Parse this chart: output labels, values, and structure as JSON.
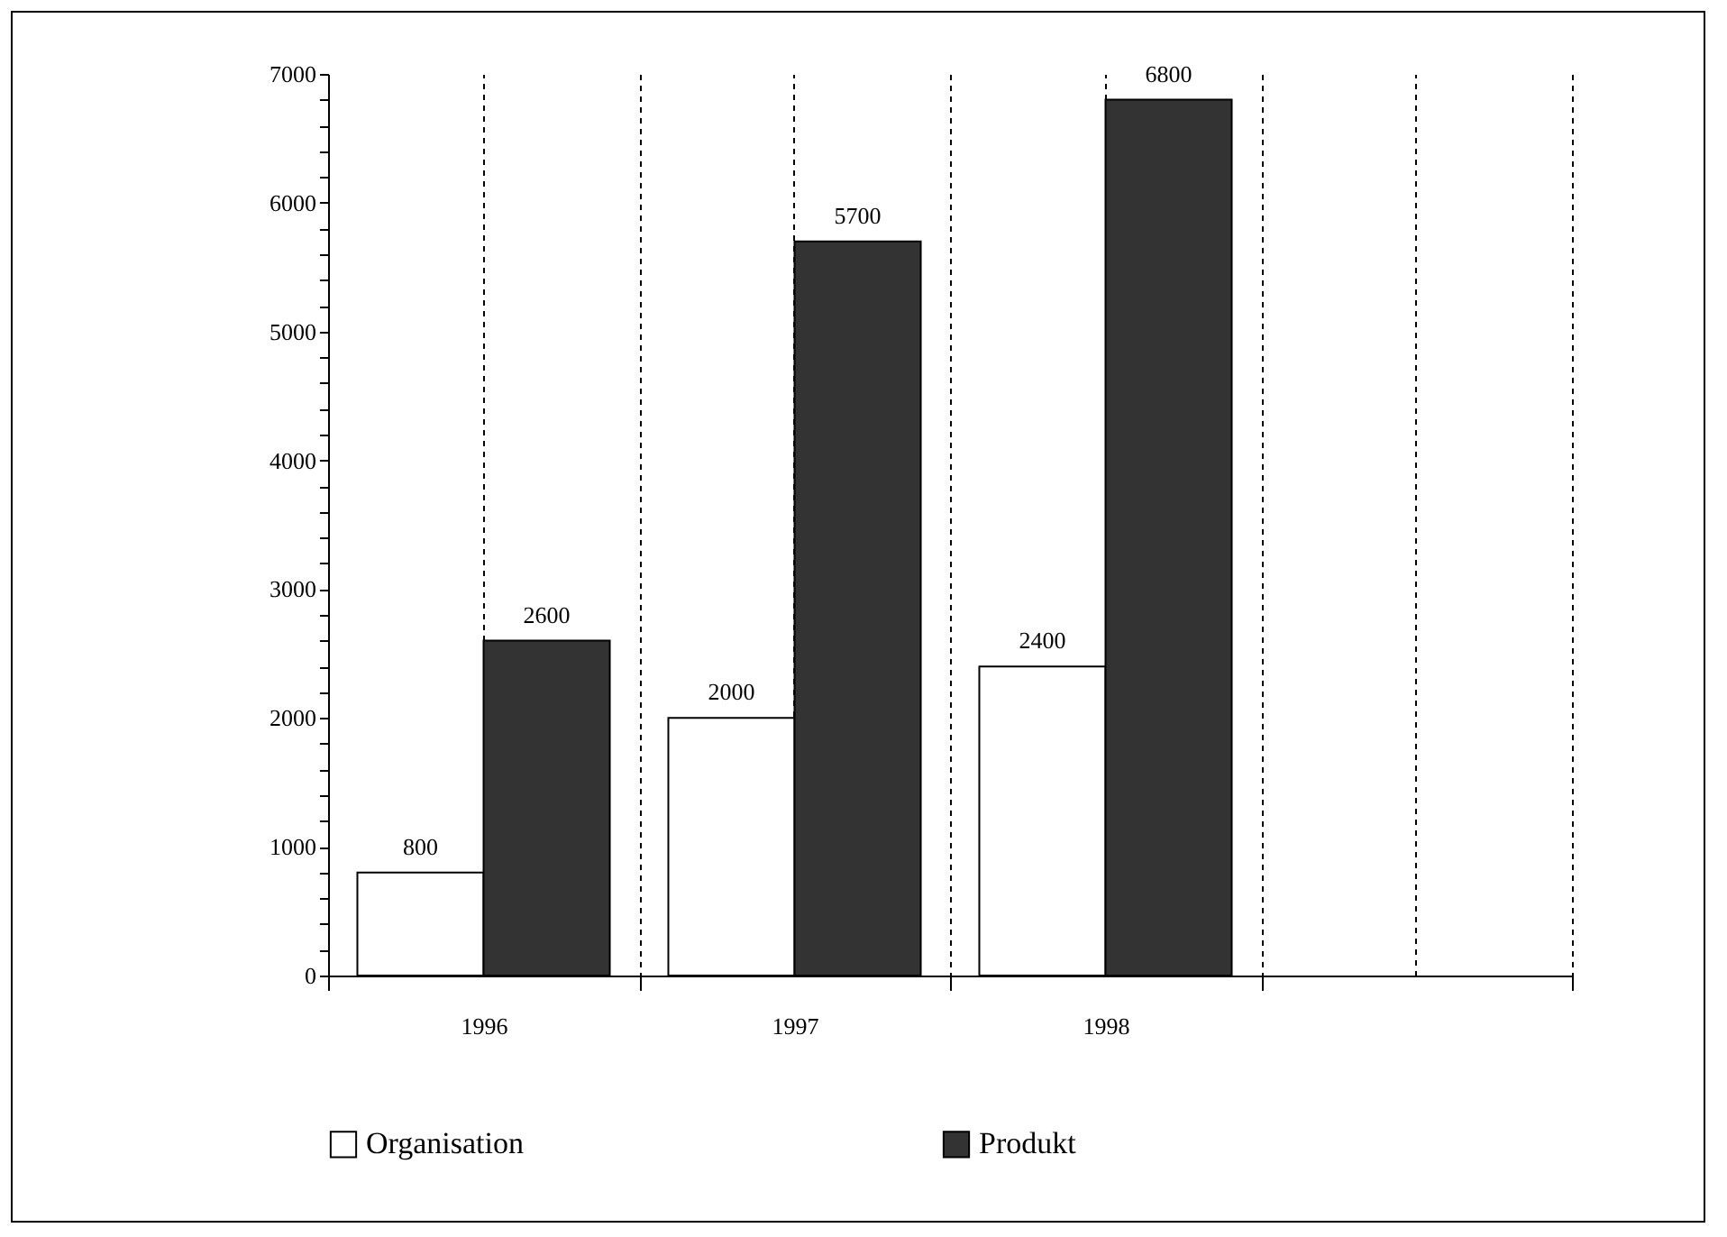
{
  "chart_data": {
    "type": "bar",
    "categories": [
      "1996",
      "1997",
      "1998",
      null
    ],
    "series": [
      {
        "name": "Organisation",
        "color": "#ffffff",
        "values": [
          800,
          2000,
          2400,
          null
        ]
      },
      {
        "name": "Produkt",
        "color": "#333333",
        "values": [
          2600,
          5700,
          6800,
          null
        ]
      }
    ],
    "ylim": [
      0,
      7000
    ],
    "yticks": [
      0,
      {
        "value": 200,
        "label": null
      },
      {
        "value": 400,
        "label": null
      },
      {
        "value": 600,
        "label": null
      },
      {
        "value": 800,
        "label": null
      },
      1000,
      {
        "value": 1200,
        "label": null
      },
      {
        "value": 1400,
        "label": null
      },
      {
        "value": 1600,
        "label": null
      },
      {
        "value": 1800,
        "label": null
      },
      2000,
      {
        "value": 2200,
        "label": null
      },
      {
        "value": 2400,
        "label": null
      },
      {
        "value": 2600,
        "label": null
      },
      {
        "value": 2800,
        "label": null
      },
      3000,
      {
        "value": 3200,
        "label": null
      },
      {
        "value": 3400,
        "label": null
      },
      {
        "value": 3600,
        "label": null
      },
      {
        "value": 3800,
        "label": null
      },
      4000,
      {
        "value": 4200,
        "label": null
      },
      {
        "value": 4400,
        "label": null
      },
      {
        "value": 4600,
        "label": null
      },
      {
        "value": 4800,
        "label": null
      },
      5000,
      {
        "value": 5200,
        "label": null
      },
      {
        "value": 5400,
        "label": null
      },
      {
        "value": 5600,
        "label": null
      },
      {
        "value": 5800,
        "label": null
      },
      6000,
      {
        "value": 6200,
        "label": null
      },
      {
        "value": 6400,
        "label": null
      },
      {
        "value": 6600,
        "label": null
      },
      {
        "value": 6800,
        "label": null
      },
      7000
    ],
    "grid": "x",
    "legend": "bottom",
    "data_labels": true
  }
}
